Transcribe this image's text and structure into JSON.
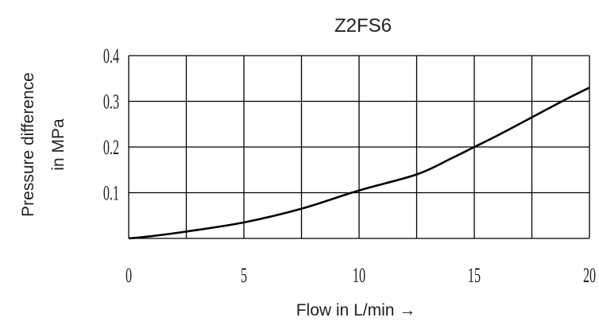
{
  "chart_data": {
    "type": "line",
    "title": "Z2FS6",
    "xlabel": "Flow in L/min →",
    "ylabel_line1": "Pressure difference",
    "ylabel_line2": "in MPa",
    "xlim": [
      0,
      20
    ],
    "ylim": [
      0,
      0.4
    ],
    "x_ticks": [
      0,
      5,
      10,
      15,
      20
    ],
    "x_tick_labels": [
      "0",
      "5",
      "10",
      "15",
      "20"
    ],
    "y_ticks": [
      0.1,
      0.2,
      0.3,
      0.4
    ],
    "y_tick_labels": [
      "0.1",
      "0.2",
      "0.3",
      "0.4"
    ],
    "grid": true,
    "x_grid_lines": [
      0,
      2.5,
      5,
      7.5,
      10,
      12.5,
      15,
      17.5,
      20
    ],
    "y_grid_lines": [
      0,
      0.1,
      0.2,
      0.3,
      0.4
    ],
    "series": [
      {
        "x": [
          0,
          1,
          2.5,
          5,
          7.5,
          10,
          12.5,
          14,
          15,
          16,
          17.5,
          19,
          20
        ],
        "y": [
          0,
          0.005,
          0.015,
          0.035,
          0.065,
          0.105,
          0.14,
          0.175,
          0.2,
          0.225,
          0.265,
          0.305,
          0.33
        ]
      }
    ],
    "colors": {
      "line": "#000000",
      "grid": "#000000",
      "text": "#222222"
    }
  }
}
